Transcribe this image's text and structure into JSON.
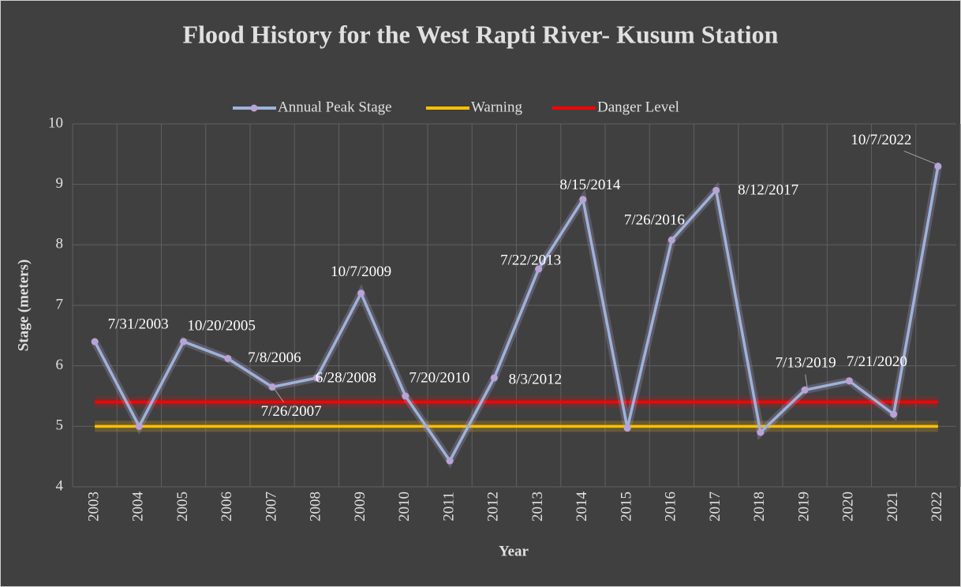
{
  "chart_data": {
    "type": "line",
    "title": "Flood History  for the West Rapti River- Kusum Station",
    "x_label": "Year",
    "y_label": "Stage (meters)",
    "categories": [
      "2003",
      "2004",
      "2005",
      "2006",
      "2007",
      "2008",
      "2009",
      "2010",
      "2011",
      "2012",
      "2013",
      "2014",
      "2015",
      "2016",
      "2017",
      "2018",
      "2019",
      "2020",
      "2021",
      "2022"
    ],
    "series": [
      {
        "name": "Annual Peak Stage",
        "color": "#9db3d9",
        "marker_color": "#b9a3d6",
        "values": [
          6.4,
          5.0,
          6.4,
          6.12,
          5.65,
          5.8,
          7.2,
          5.5,
          4.43,
          5.8,
          7.6,
          8.75,
          4.97,
          8.08,
          8.9,
          4.9,
          5.6,
          5.75,
          5.2,
          9.3
        ],
        "point_labels": [
          "7/31/2003",
          null,
          "10/20/2005",
          "7/8/2006",
          "7/26/2007",
          "6/28/2008",
          "10/7/2009",
          "7/20/2010",
          null,
          "8/3/2012",
          "7/22/2013",
          "8/15/2014",
          null,
          "7/26/2016",
          "8/12/2017",
          null,
          "7/13/2019",
          "7/21/2020",
          null,
          "10/7/2022"
        ]
      },
      {
        "name": "Warning",
        "color": "#ffc000",
        "values": [
          5,
          5,
          5,
          5,
          5,
          5,
          5,
          5,
          5,
          5,
          5,
          5,
          5,
          5,
          5,
          5,
          5,
          5,
          5,
          5
        ]
      },
      {
        "name": "Danger Level",
        "color": "#ff0000",
        "values": [
          5.4,
          5.4,
          5.4,
          5.4,
          5.4,
          5.4,
          5.4,
          5.4,
          5.4,
          5.4,
          5.4,
          5.4,
          5.4,
          5.4,
          5.4,
          5.4,
          5.4,
          5.4,
          5.4,
          5.4
        ]
      }
    ],
    "ylim": [
      4,
      10
    ],
    "yticks": [
      4,
      5,
      6,
      7,
      8,
      9,
      10
    ],
    "grid": true,
    "legend": "top"
  }
}
